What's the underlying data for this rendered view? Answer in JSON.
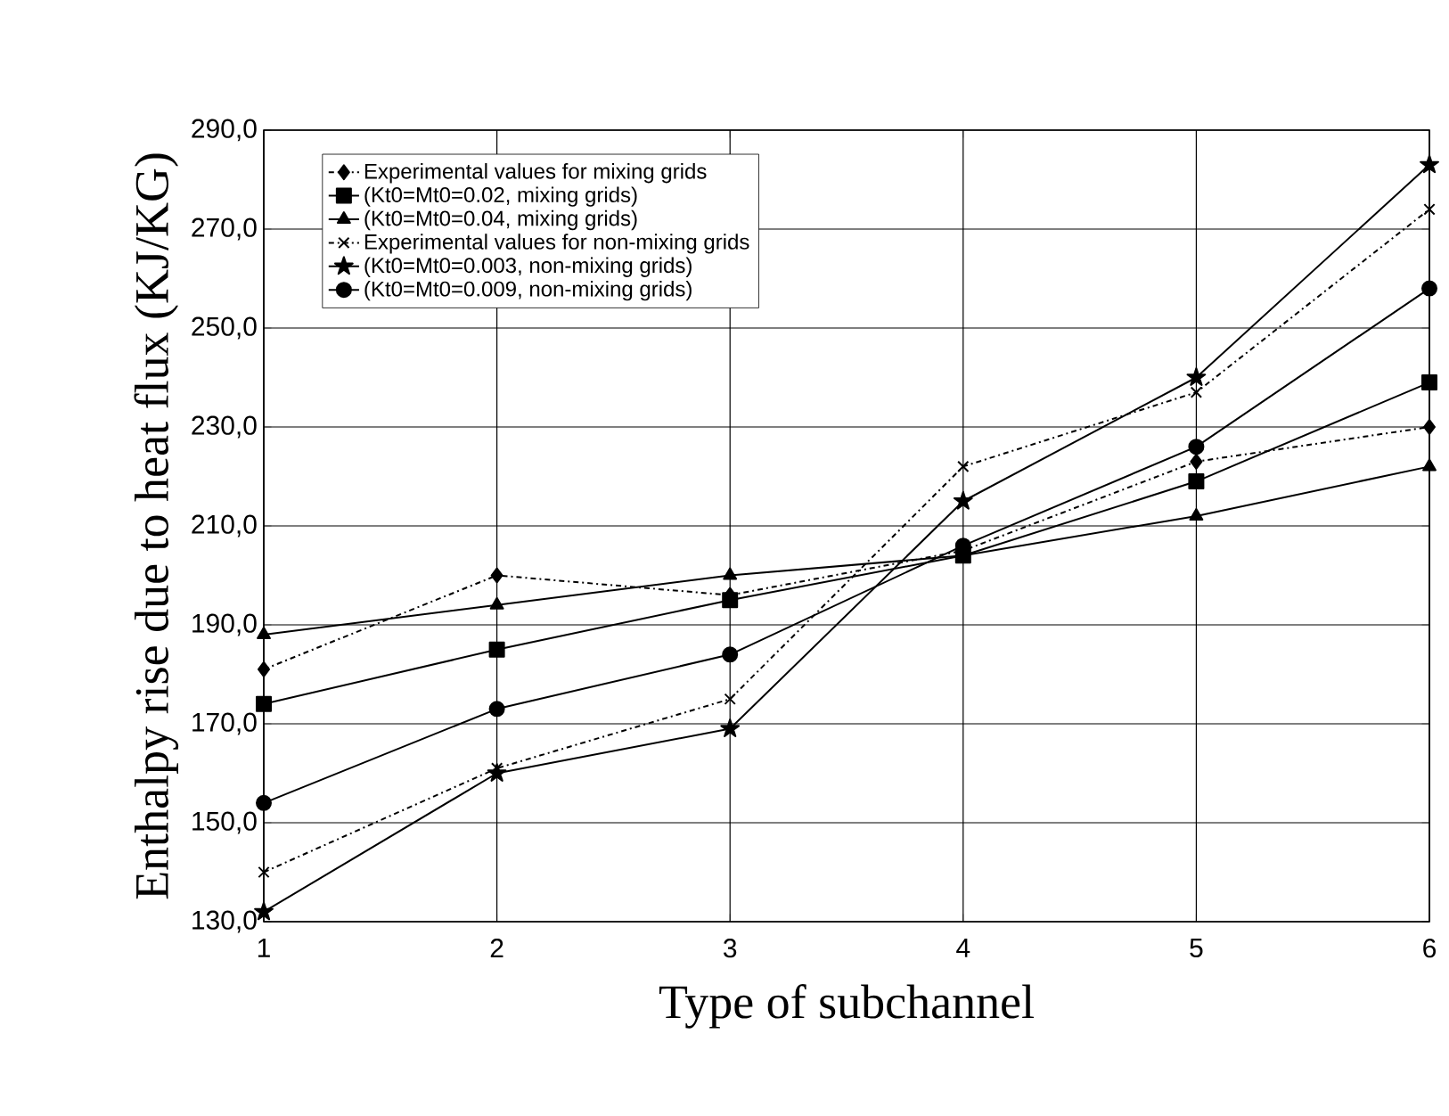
{
  "chart_data": {
    "type": "line",
    "xlabel": "Type of subchannel",
    "ylabel": "Enthalpy rise due to heat flux (KJ/KG)",
    "x": [
      1,
      2,
      3,
      4,
      5,
      6
    ],
    "xlim": [
      1,
      6
    ],
    "xticks": [
      1,
      2,
      3,
      4,
      5,
      6
    ],
    "ylim": [
      130,
      290
    ],
    "yticks": [
      {
        "value": 130,
        "label": "130,0"
      },
      {
        "value": 150,
        "label": "150,0"
      },
      {
        "value": 170,
        "label": "170,0"
      },
      {
        "value": 190,
        "label": "190,0"
      },
      {
        "value": 210,
        "label": "210,0"
      },
      {
        "value": 230,
        "label": "230,0"
      },
      {
        "value": 250,
        "label": "250,0"
      },
      {
        "value": 270,
        "label": "270,0"
      },
      {
        "value": 290,
        "label": "290,0"
      }
    ],
    "grid": true,
    "legend": "top left",
    "series": [
      {
        "name": "Experimental values for mixing grids",
        "color": "#000000",
        "marker": "diamond",
        "line_style": "dashed",
        "values": [
          181,
          200,
          196,
          205,
          223,
          230
        ]
      },
      {
        "name": "(Kt0=Mt0=0.02, mixing grids)",
        "color": "#000000",
        "marker": "square",
        "line_style": "solid",
        "values": [
          174,
          185,
          195,
          204,
          219,
          239
        ]
      },
      {
        "name": "(Kt0=Mt0=0.04, mixing grids)",
        "color": "#000000",
        "marker": "triangle",
        "line_style": "solid",
        "values": [
          188,
          194,
          200,
          204,
          212,
          222
        ]
      },
      {
        "name": "Experimental values for non-mixing grids",
        "color": "#000000",
        "marker": "cross",
        "line_style": "dashed",
        "values": [
          140,
          161,
          175,
          222,
          237,
          274
        ]
      },
      {
        "name": "(Kt0=Mt0=0.003, non-mixing grids)",
        "color": "#000000",
        "marker": "star",
        "line_style": "solid",
        "values": [
          132,
          160,
          169,
          215,
          240,
          283
        ]
      },
      {
        "name": "(Kt0=Mt0=0.009, non-mixing grids)",
        "color": "#000000",
        "marker": "circle",
        "line_style": "solid",
        "values": [
          154,
          173,
          184,
          206,
          226,
          258
        ]
      }
    ]
  }
}
